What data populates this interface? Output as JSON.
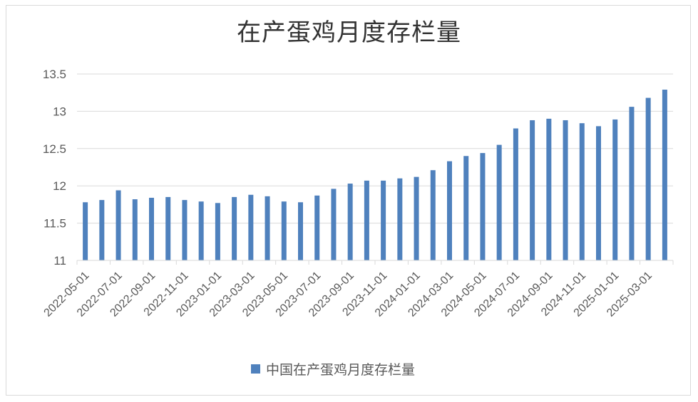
{
  "chart_data": {
    "type": "bar",
    "title": "在产蛋鸡月度存栏量",
    "xlabel": "",
    "ylabel": "",
    "ylim": [
      11,
      13.5
    ],
    "yticks": [
      "11",
      "11.5",
      "12",
      "12.5",
      "13",
      "13.5"
    ],
    "grid": true,
    "legend_position": "bottom",
    "color": "#4f81bd",
    "x_tick_labels": [
      "2022-05-01",
      "2022-07-01",
      "2022-09-01",
      "2022-11-01",
      "2023-01-01",
      "2023-03-01",
      "2023-05-01",
      "2023-07-01",
      "2023-09-01",
      "2023-11-01",
      "2024-01-01",
      "2024-03-01",
      "2024-05-01",
      "2024-07-01",
      "2024-09-01",
      "2024-11-01",
      "2025-01-01",
      "2025-03-01"
    ],
    "categories": [
      "2022-05-01",
      "2022-06-01",
      "2022-07-01",
      "2022-08-01",
      "2022-09-01",
      "2022-10-01",
      "2022-11-01",
      "2022-12-01",
      "2023-01-01",
      "2023-02-01",
      "2023-03-01",
      "2023-04-01",
      "2023-05-01",
      "2023-06-01",
      "2023-07-01",
      "2023-08-01",
      "2023-09-01",
      "2023-10-01",
      "2023-11-01",
      "2023-12-01",
      "2024-01-01",
      "2024-02-01",
      "2024-03-01",
      "2024-04-01",
      "2024-05-01",
      "2024-06-01",
      "2024-07-01",
      "2024-08-01",
      "2024-09-01",
      "2024-10-01",
      "2024-11-01",
      "2024-12-01",
      "2025-01-01",
      "2025-02-01",
      "2025-03-01",
      "2025-04-01"
    ],
    "series": [
      {
        "name": "中国在产蛋鸡月度存栏量",
        "values": [
          11.78,
          11.81,
          11.94,
          11.82,
          11.84,
          11.85,
          11.81,
          11.79,
          11.77,
          11.85,
          11.88,
          11.86,
          11.79,
          11.78,
          11.87,
          11.96,
          12.03,
          12.07,
          12.07,
          12.1,
          12.12,
          12.21,
          12.33,
          12.4,
          12.44,
          12.55,
          12.77,
          12.88,
          12.9,
          12.88,
          12.84,
          12.8,
          12.89,
          13.06,
          13.18,
          13.29
        ]
      }
    ]
  }
}
